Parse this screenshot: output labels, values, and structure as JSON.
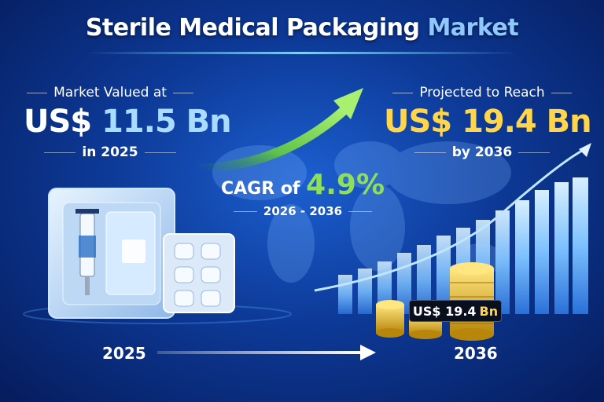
{
  "title": {
    "main": "Sterile Medical Packaging",
    "accent": "Market"
  },
  "left_stat": {
    "caption": "Market Valued at",
    "currency": "US$",
    "value": "11.5 Bn",
    "year_text": "in 2025"
  },
  "right_stat": {
    "caption": "Projected to Reach",
    "currency": "US$",
    "value": "19.4 Bn",
    "year_text": "by 2036"
  },
  "cagr": {
    "prefix": "CAGR of",
    "value": "4.9%",
    "period": "2026 - 2036"
  },
  "timeline": {
    "start": "2025",
    "end": "2036"
  },
  "badge": {
    "prefix": "US$ 19.4",
    "unit": "Bn"
  },
  "colors": {
    "accent_blue": "#8fc8ff",
    "gold": "#ffd54a",
    "green": "#8ee05a",
    "bg_dark": "#061c5c"
  },
  "icons": [
    "growth-arrow-icon",
    "sterile-tray-icon",
    "syringe-icon",
    "blister-pack-icon",
    "coin-stack-icon",
    "bar-chart-icon",
    "timeline-arrow-icon"
  ]
}
